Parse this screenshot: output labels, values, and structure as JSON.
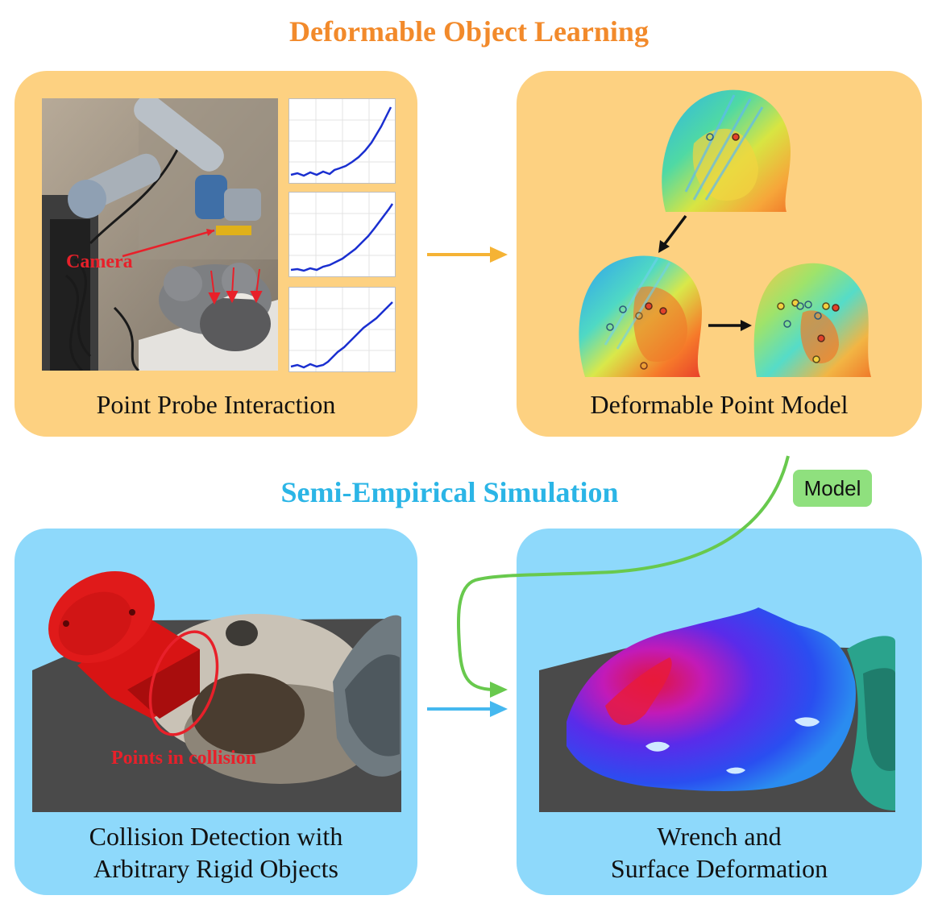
{
  "titles": {
    "top": "Deformable Object Learning",
    "bottom": "Semi-Empirical Simulation"
  },
  "panels": {
    "probe": {
      "caption": "Point Probe Interaction",
      "camera_label": "Camera"
    },
    "model": {
      "caption": "Deformable Point Model"
    },
    "collision": {
      "caption_line1": "Collision Detection with",
      "caption_line2": "Arbitrary Rigid Objects",
      "collision_label": "Points in collision"
    },
    "wrench": {
      "caption_line1": "Wrench and",
      "caption_line2": "Surface Deformation"
    }
  },
  "badge": {
    "label": "Model"
  },
  "colors": {
    "orange_title": "#f28a2b",
    "blue_title": "#2bb5e6",
    "orange_panel": "#fdd181",
    "blue_panel": "#8ed9fb",
    "arrow_orange": "#f5b335",
    "arrow_blue": "#45b8ef",
    "arrow_green": "#68c94d",
    "annotation_red": "#e8202a"
  }
}
